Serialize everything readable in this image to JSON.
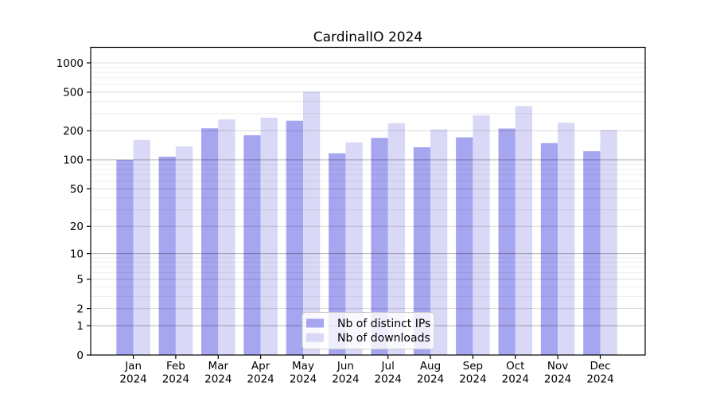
{
  "title": "CardinalIO 2024",
  "chart_data": {
    "type": "bar",
    "title": "CardinalIO 2024",
    "categories": [
      "Jan",
      "Feb",
      "Mar",
      "Apr",
      "May",
      "Jun",
      "Jul",
      "Aug",
      "Sep",
      "Oct",
      "Nov",
      "Dec"
    ],
    "year_label": "2024",
    "series": [
      {
        "name": "Nb of distinct IPs",
        "color": "#a5a5f0",
        "values": [
          100,
          108,
          212,
          180,
          254,
          117,
          169,
          135,
          171,
          211,
          149,
          123
        ]
      },
      {
        "name": "Nb of downloads",
        "color": "#d9d9f7",
        "values": [
          161,
          138,
          262,
          273,
          507,
          152,
          240,
          206,
          290,
          359,
          242,
          204
        ]
      }
    ],
    "xlabel": "",
    "ylabel": "",
    "yscale": "log1p",
    "yticks": [
      0,
      1,
      2,
      5,
      10,
      20,
      50,
      100,
      200,
      500,
      1000
    ],
    "ylim": [
      0,
      1460
    ],
    "grid": "both",
    "legend_position": "lower center",
    "colors": {
      "axis": "#000000",
      "grid_major": "rgba(0,0,0,0.30)",
      "grid_labeled": "rgba(0,0,0,0.15)",
      "grid_minor": "rgba(0,0,0,0.065)",
      "legend_border": "#cccccc"
    }
  }
}
